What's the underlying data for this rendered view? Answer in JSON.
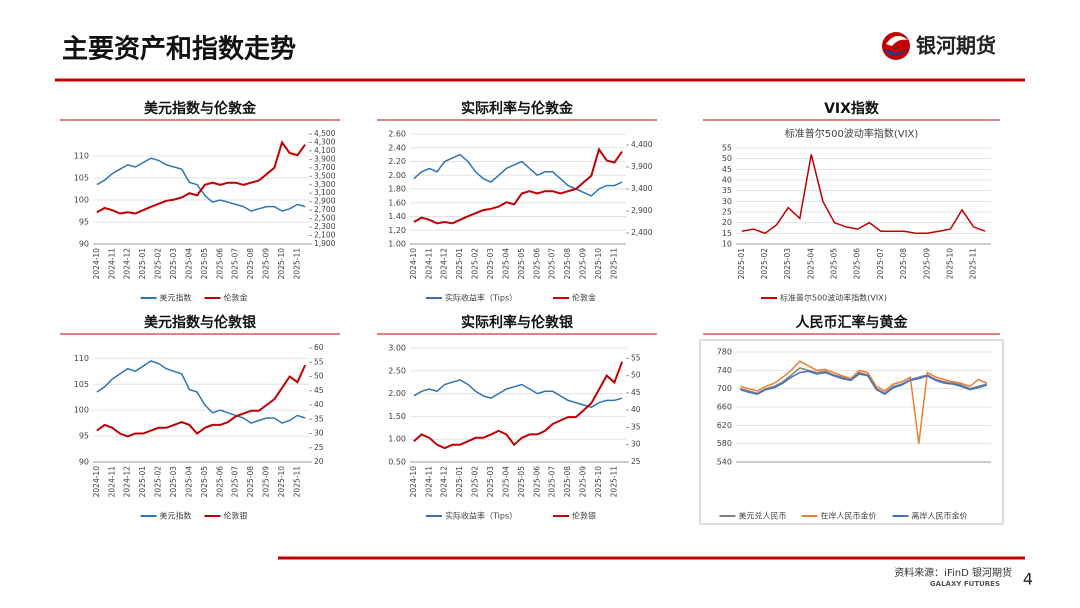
{
  "header": {
    "title": "主要资产和指数走势",
    "logo": "银河期货"
  },
  "footer": {
    "source": "资料来源：iFinD 银河期货",
    "brand": "GALAXY FUTURES",
    "page": "4"
  },
  "chart_data": [
    {
      "type": "line",
      "title": "美元指数与伦敦金",
      "legend": "bottom",
      "categories": [
        "2024-10",
        null,
        "2024-11",
        null,
        "2024-12",
        null,
        "2025-01",
        null,
        "2025-02",
        null,
        "2025-03",
        null,
        "2025-04",
        null,
        "2025-05",
        null,
        "2025-06",
        null,
        "2025-07",
        null,
        "2025-08",
        null,
        "2025-09",
        null,
        "2025-10",
        null,
        "2025-11",
        null
      ],
      "series": [
        {
          "name": "美元指数",
          "color": "#2e75b6",
          "values": [
            103.5,
            104.5,
            106,
            107,
            108,
            107.5,
            108.5,
            109.5,
            109,
            108,
            107.5,
            107,
            104,
            103.5,
            101,
            99.5,
            100,
            99.5,
            99,
            98.5,
            97.5,
            98,
            98.5,
            98.5,
            97.5,
            98,
            99,
            98.5
          ]
        },
        {
          "name": "伦敦金",
          "color": "#c00000",
          "axis": "y2",
          "values": [
            2650,
            2750,
            2700,
            2620,
            2650,
            2620,
            2700,
            2780,
            2850,
            2920,
            2950,
            3000,
            3100,
            3050,
            3300,
            3350,
            3300,
            3350,
            3350,
            3300,
            3350,
            3400,
            3550,
            3700,
            4300,
            4050,
            4000,
            4250
          ]
        }
      ],
      "ylim": [
        90,
        115
      ],
      "yticks": [
        90,
        95,
        100,
        105,
        110
      ],
      "y2lim": [
        1900,
        4500
      ],
      "y2ticks": [
        {
          "value": 1900,
          "label": "1,900"
        },
        {
          "value": 2100,
          "label": "2,100"
        },
        {
          "value": 2300,
          "label": "2,300"
        },
        {
          "value": 2500,
          "label": "2,500"
        },
        {
          "value": 2700,
          "label": "2,700"
        },
        {
          "value": 2900,
          "label": "2,900"
        },
        {
          "value": 3100,
          "label": "3,100"
        },
        {
          "value": 3300,
          "label": "3,300"
        },
        {
          "value": 3500,
          "label": "3,500"
        },
        {
          "value": 3700,
          "label": "3,700"
        },
        {
          "value": 3900,
          "label": "3,900"
        },
        {
          "value": 4100,
          "label": "4,100"
        },
        {
          "value": 4300,
          "label": "4,300"
        },
        {
          "value": 4500,
          "label": "4,500"
        }
      ]
    },
    {
      "type": "line",
      "title": "实际利率与伦敦金",
      "legend": "bottom",
      "categories": [
        "2024-10",
        null,
        "2024-11",
        null,
        "2024-12",
        null,
        "2025-01",
        null,
        "2025-02",
        null,
        "2025-03",
        null,
        "2025-04",
        null,
        "2025-05",
        null,
        "2025-06",
        null,
        "2025-07",
        null,
        "2025-08",
        null,
        "2025-09",
        null,
        "2025-10",
        null,
        "2025-11",
        null
      ],
      "series": [
        {
          "name": "实际收益率（Tips）",
          "color": "#2e75b6",
          "values": [
            1.95,
            2.05,
            2.1,
            2.05,
            2.2,
            2.25,
            2.3,
            2.2,
            2.05,
            1.95,
            1.9,
            2.0,
            2.1,
            2.15,
            2.2,
            2.1,
            2.0,
            2.05,
            2.05,
            1.95,
            1.85,
            1.8,
            1.75,
            1.7,
            1.8,
            1.85,
            1.85,
            1.9
          ]
        },
        {
          "name": "伦敦金",
          "color": "#c00000",
          "axis": "y2",
          "values": [
            2650,
            2750,
            2700,
            2620,
            2650,
            2620,
            2700,
            2780,
            2850,
            2920,
            2950,
            3000,
            3100,
            3050,
            3300,
            3350,
            3300,
            3350,
            3350,
            3300,
            3350,
            3400,
            3550,
            3700,
            4300,
            4050,
            4000,
            4250
          ]
        }
      ],
      "ylim": [
        1.0,
        2.6
      ],
      "yticks": [
        {
          "value": 1.0,
          "label": "1.00"
        },
        {
          "value": 1.2,
          "label": "1.20"
        },
        {
          "value": 1.4,
          "label": "1.40"
        },
        {
          "value": 1.6,
          "label": "1.60"
        },
        {
          "value": 1.8,
          "label": "1.80"
        },
        {
          "value": 2.0,
          "label": "2.00"
        },
        {
          "value": 2.2,
          "label": "2.20"
        },
        {
          "value": 2.4,
          "label": "2.40"
        },
        {
          "value": 2.6,
          "label": "2.60"
        }
      ],
      "y2lim": [
        2150,
        4650
      ],
      "y2ticks": [
        {
          "value": 2400,
          "label": "2,400"
        },
        {
          "value": 2900,
          "label": "2,900"
        },
        {
          "value": 3400,
          "label": "3,400"
        },
        {
          "value": 3900,
          "label": "3,900"
        },
        {
          "value": 4400,
          "label": "4,400"
        }
      ]
    },
    {
      "type": "line",
      "title": "VIX指数",
      "subtitle": "标准普尔500波动率指数(VIX)",
      "legend": "bottom",
      "categories": [
        "2025-01",
        null,
        "2025-02",
        null,
        "2025-03",
        null,
        "2025-04",
        null,
        "2025-05",
        null,
        "2025-06",
        null,
        "2025-07",
        null,
        "2025-08",
        null,
        "2025-09",
        null,
        "2025-10",
        null,
        "2025-11",
        null
      ],
      "series": [
        {
          "name": "标准普尔500波动率指数(VIX)",
          "color": "#c00000",
          "values": [
            16,
            17,
            15,
            19,
            27,
            22,
            52,
            30,
            20,
            18,
            17,
            20,
            16,
            16,
            16,
            15,
            15,
            16,
            17,
            26,
            18,
            16
          ]
        }
      ],
      "ylim": [
        10,
        55
      ],
      "yticks": [
        10,
        15,
        20,
        25,
        30,
        35,
        40,
        45,
        50,
        55
      ]
    },
    {
      "type": "line",
      "title": "美元指数与伦敦银",
      "legend": "bottom",
      "categories": [
        "2024-10",
        null,
        "2024-11",
        null,
        "2024-12",
        null,
        "2025-01",
        null,
        "2025-02",
        null,
        "2025-03",
        null,
        "2025-04",
        null,
        "2025-05",
        null,
        "2025-06",
        null,
        "2025-07",
        null,
        "2025-08",
        null,
        "2025-09",
        null,
        "2025-10",
        null,
        "2025-11",
        null
      ],
      "series": [
        {
          "name": "美元指数",
          "color": "#2e75b6",
          "values": [
            103.5,
            104.5,
            106,
            107,
            108,
            107.5,
            108.5,
            109.5,
            109,
            108,
            107.5,
            107,
            104,
            103.5,
            101,
            99.5,
            100,
            99.5,
            99,
            98.5,
            97.5,
            98,
            98.5,
            98.5,
            97.5,
            98,
            99,
            98.5
          ]
        },
        {
          "name": "伦敦银",
          "color": "#c00000",
          "axis": "y2",
          "values": [
            31,
            33,
            32,
            30,
            29,
            30,
            30,
            31,
            32,
            32,
            33,
            34,
            33,
            30,
            32,
            33,
            33,
            34,
            36,
            37,
            38,
            38,
            40,
            42,
            46,
            50,
            48,
            54
          ]
        }
      ],
      "ylim": [
        90,
        112
      ],
      "yticks": [
        90,
        95,
        100,
        105,
        110
      ],
      "y2lim": [
        20,
        60
      ],
      "y2ticks": [
        20,
        25,
        30,
        35,
        40,
        45,
        50,
        55,
        60
      ]
    },
    {
      "type": "line",
      "title": "实际利率与伦敦银",
      "legend": "bottom",
      "categories": [
        "2024-10",
        null,
        "2024-11",
        null,
        "2024-12",
        null,
        "2025-01",
        null,
        "2025-02",
        null,
        "2025-03",
        null,
        "2025-04",
        null,
        "2025-05",
        null,
        "2025-06",
        null,
        "2025-07",
        null,
        "2025-08",
        null,
        "2025-09",
        null,
        "2025-10",
        null,
        "2025-11",
        null
      ],
      "series": [
        {
          "name": "实际收益率（Tips）",
          "color": "#2e75b6",
          "values": [
            1.95,
            2.05,
            2.1,
            2.05,
            2.2,
            2.25,
            2.3,
            2.2,
            2.05,
            1.95,
            1.9,
            2.0,
            2.1,
            2.15,
            2.2,
            2.1,
            2.0,
            2.05,
            2.05,
            1.95,
            1.85,
            1.8,
            1.75,
            1.7,
            1.8,
            1.85,
            1.85,
            1.9
          ]
        },
        {
          "name": "伦敦银",
          "color": "#c00000",
          "axis": "y2",
          "values": [
            31,
            33,
            32,
            30,
            29,
            30,
            30,
            31,
            32,
            32,
            33,
            34,
            33,
            30,
            32,
            33,
            33,
            34,
            36,
            37,
            38,
            38,
            40,
            42,
            46,
            50,
            48,
            54
          ]
        }
      ],
      "ylim": [
        0.5,
        3.0
      ],
      "yticks": [
        {
          "value": 0.5,
          "label": "0.50"
        },
        {
          "value": 1.0,
          "label": "1.00"
        },
        {
          "value": 1.5,
          "label": "1.50"
        },
        {
          "value": 2.0,
          "label": "2.00"
        },
        {
          "value": 2.5,
          "label": "2.50"
        },
        {
          "value": 3.0,
          "label": "3.00"
        }
      ],
      "y2lim": [
        25,
        58
      ],
      "y2ticks": [
        25,
        30,
        35,
        40,
        45,
        50,
        55
      ]
    },
    {
      "type": "line",
      "title": "人民币汇率与黄金",
      "legend": "bottom",
      "framed": true,
      "categories": [
        null,
        null,
        null,
        null,
        null,
        null,
        null,
        null,
        null,
        null,
        null,
        null,
        null,
        null,
        null,
        null,
        null,
        null,
        null,
        null,
        null,
        null,
        null,
        null,
        null,
        null,
        null,
        null,
        null,
        null
      ],
      "series": [
        {
          "name": "美元兑人民币",
          "color": "#7f7f7f",
          "values": [
            700,
            695,
            690,
            700,
            705,
            715,
            730,
            745,
            740,
            735,
            738,
            730,
            725,
            720,
            735,
            730,
            700,
            690,
            705,
            710,
            720,
            725,
            730,
            720,
            715,
            712,
            708,
            700,
            705,
            710
          ]
        },
        {
          "name": "在岸人民币金价",
          "color": "#ed7d31",
          "values": [
            705,
            700,
            695,
            705,
            712,
            725,
            740,
            760,
            750,
            740,
            742,
            735,
            728,
            722,
            740,
            735,
            705,
            695,
            710,
            715,
            725,
            580,
            735,
            725,
            720,
            715,
            712,
            705,
            720,
            712
          ]
        },
        {
          "name": "离岸人民币金价",
          "color": "#4472c4",
          "values": [
            698,
            692,
            688,
            698,
            702,
            712,
            725,
            735,
            738,
            732,
            735,
            728,
            722,
            718,
            732,
            728,
            698,
            688,
            702,
            708,
            718,
            722,
            728,
            718,
            712,
            710,
            705,
            698,
            702,
            708
          ]
        }
      ],
      "ylim": [
        540,
        780
      ],
      "yticks": [
        540,
        580,
        620,
        660,
        700,
        740,
        780
      ]
    }
  ]
}
